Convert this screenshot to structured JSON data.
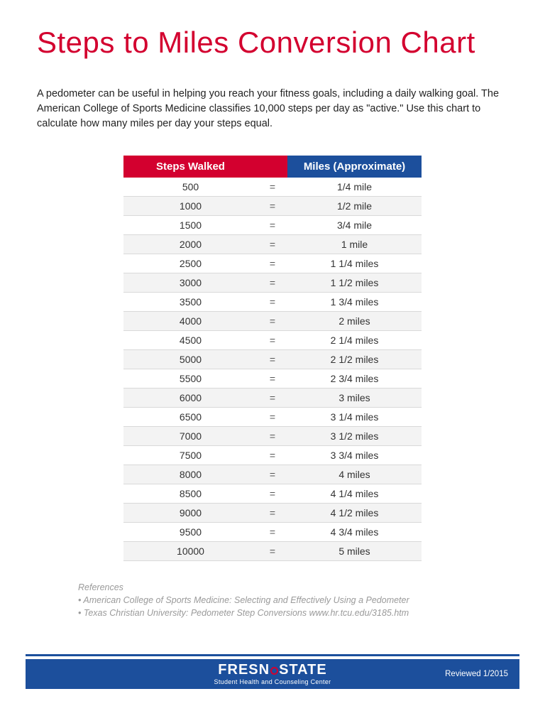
{
  "title": "Steps to Miles Conversion Chart",
  "intro": "A pedometer can be useful in helping you reach your fitness goals, including a daily walking goal. The American College of Sports Medicine classifies 10,000 steps per day as \"active.\" Use this chart to calculate how many miles per day your steps equal.",
  "table": {
    "header_steps": "Steps Walked",
    "header_miles": "Miles (Approximate)",
    "equals": "=",
    "header_bg_steps": "#d3002f",
    "header_bg_miles": "#1c4f9c",
    "row_alt_bg": "#f3f3f3",
    "rows": [
      {
        "steps": "500",
        "miles": "1/4 mile"
      },
      {
        "steps": "1000",
        "miles": "1/2 mile"
      },
      {
        "steps": "1500",
        "miles": "3/4 mile"
      },
      {
        "steps": "2000",
        "miles": "1 mile"
      },
      {
        "steps": "2500",
        "miles": "1 1/4 miles"
      },
      {
        "steps": "3000",
        "miles": "1 1/2 miles"
      },
      {
        "steps": "3500",
        "miles": "1 3/4 miles"
      },
      {
        "steps": "4000",
        "miles": "2 miles"
      },
      {
        "steps": "4500",
        "miles": "2 1/4 miles"
      },
      {
        "steps": "5000",
        "miles": "2 1/2 miles"
      },
      {
        "steps": "5500",
        "miles": "2 3/4 miles"
      },
      {
        "steps": "6000",
        "miles": "3 miles"
      },
      {
        "steps": "6500",
        "miles": "3 1/4 miles"
      },
      {
        "steps": "7000",
        "miles": "3 1/2 miles"
      },
      {
        "steps": "7500",
        "miles": "3 3/4 miles"
      },
      {
        "steps": "8000",
        "miles": "4 miles"
      },
      {
        "steps": "8500",
        "miles": "4 1/4 miles"
      },
      {
        "steps": "9000",
        "miles": "4 1/2 miles"
      },
      {
        "steps": "9500",
        "miles": "4 3/4 miles"
      },
      {
        "steps": "10000",
        "miles": "5 miles"
      }
    ]
  },
  "references": {
    "heading": "References",
    "items": [
      "American College of Sports Medicine: Selecting and Effectively Using a Pedometer",
      "Texas Christian University: Pedometer Step Conversions www.hr.tcu.edu/3185.htm"
    ]
  },
  "footer": {
    "brand_left": "FRESN",
    "brand_right": "STATE",
    "subtitle": "Student Health and Counseling Center",
    "reviewed": "Reviewed  1/2015",
    "band_color": "#1c4f9c",
    "accent_color": "#d3002f"
  }
}
